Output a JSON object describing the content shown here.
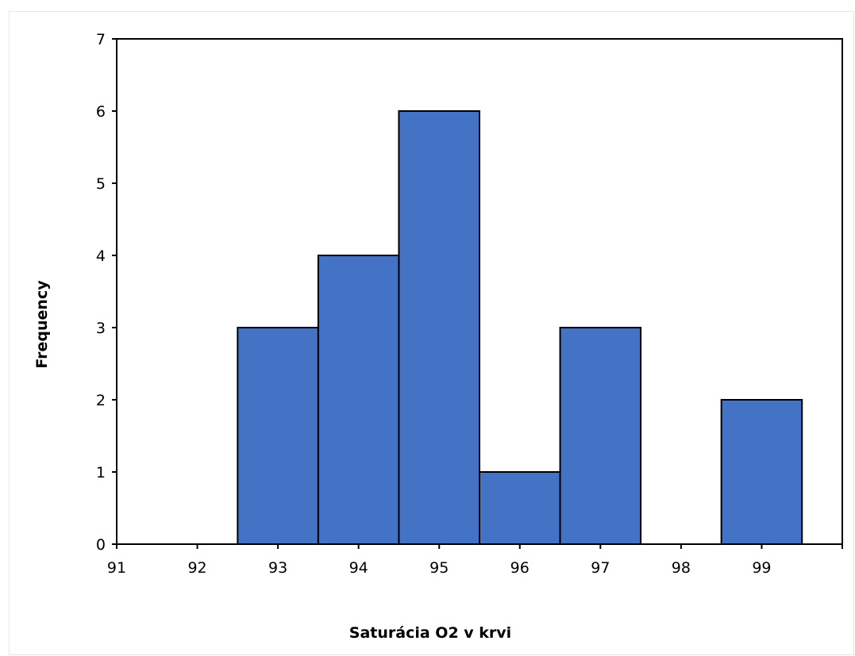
{
  "chart_data": {
    "type": "bar",
    "subtype": "histogram",
    "title": "",
    "xlabel": "Saturácia O2 v krvi",
    "ylabel": "Frequency",
    "categories": [
      "93",
      "94",
      "95",
      "96",
      "97",
      "98",
      "99"
    ],
    "bins": [
      {
        "center": 93,
        "value": 3
      },
      {
        "center": 94,
        "value": 4
      },
      {
        "center": 95,
        "value": 6
      },
      {
        "center": 96,
        "value": 1
      },
      {
        "center": 97,
        "value": 3
      },
      {
        "center": 98,
        "value": 0
      },
      {
        "center": 99,
        "value": 2
      }
    ],
    "bin_width": 1,
    "xlim": [
      91,
      100
    ],
    "ylim": [
      0,
      7
    ],
    "xticks": [
      91,
      92,
      93,
      94,
      95,
      96,
      97,
      98,
      99
    ],
    "yticks": [
      0,
      1,
      2,
      3,
      4,
      5,
      6,
      7
    ],
    "grid": false,
    "legend": "none",
    "colors": {
      "bar_fill": "#4472C4",
      "bar_stroke": "#000000",
      "axis": "#000000"
    }
  }
}
